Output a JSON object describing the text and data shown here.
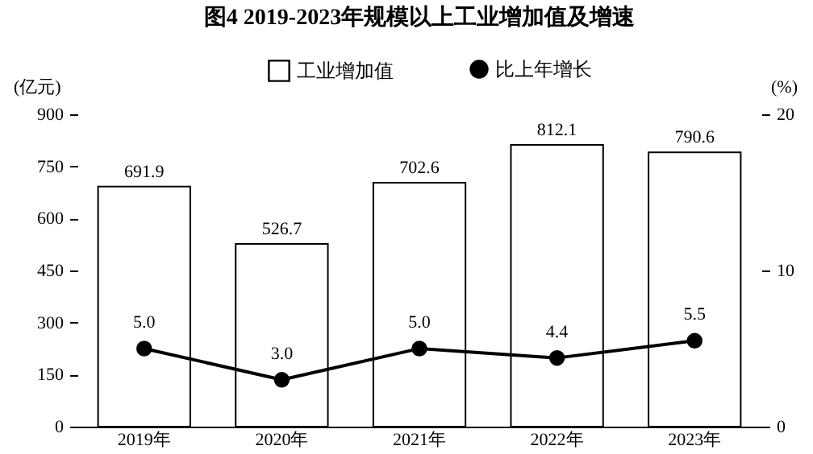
{
  "chart_data": {
    "type": "bar",
    "title": "图4  2019-2023年规模以上工业增加值及增速",
    "ylabel": "(亿元)",
    "y2label": "(%)",
    "categories": [
      "2019年",
      "2020年",
      "2021年",
      "2022年",
      "2023年"
    ],
    "series": [
      {
        "name": "工业增加值",
        "color": "#ffffff",
        "values": [
          691.9,
          526.7,
          702.6,
          812.1,
          790.6
        ],
        "value_labels": [
          "691.9",
          "526.7",
          "702.6",
          "812.1",
          "790.6"
        ]
      },
      {
        "name": "比上年增长",
        "type": "line",
        "axis": "y2",
        "color": "#000000",
        "values": [
          5.0,
          3.0,
          5.0,
          4.4,
          5.5
        ],
        "value_labels": [
          "5.0",
          "3.0",
          "5.0",
          "4.4",
          "5.5"
        ]
      }
    ],
    "ylim": [
      0,
      900
    ],
    "yticks": [
      0,
      150,
      300,
      450,
      600,
      750,
      900
    ],
    "y2lim": [
      0,
      20
    ],
    "y2ticks": [
      0,
      10,
      20
    ],
    "legend": "top",
    "marker": "circle",
    "line_style": "solid"
  }
}
